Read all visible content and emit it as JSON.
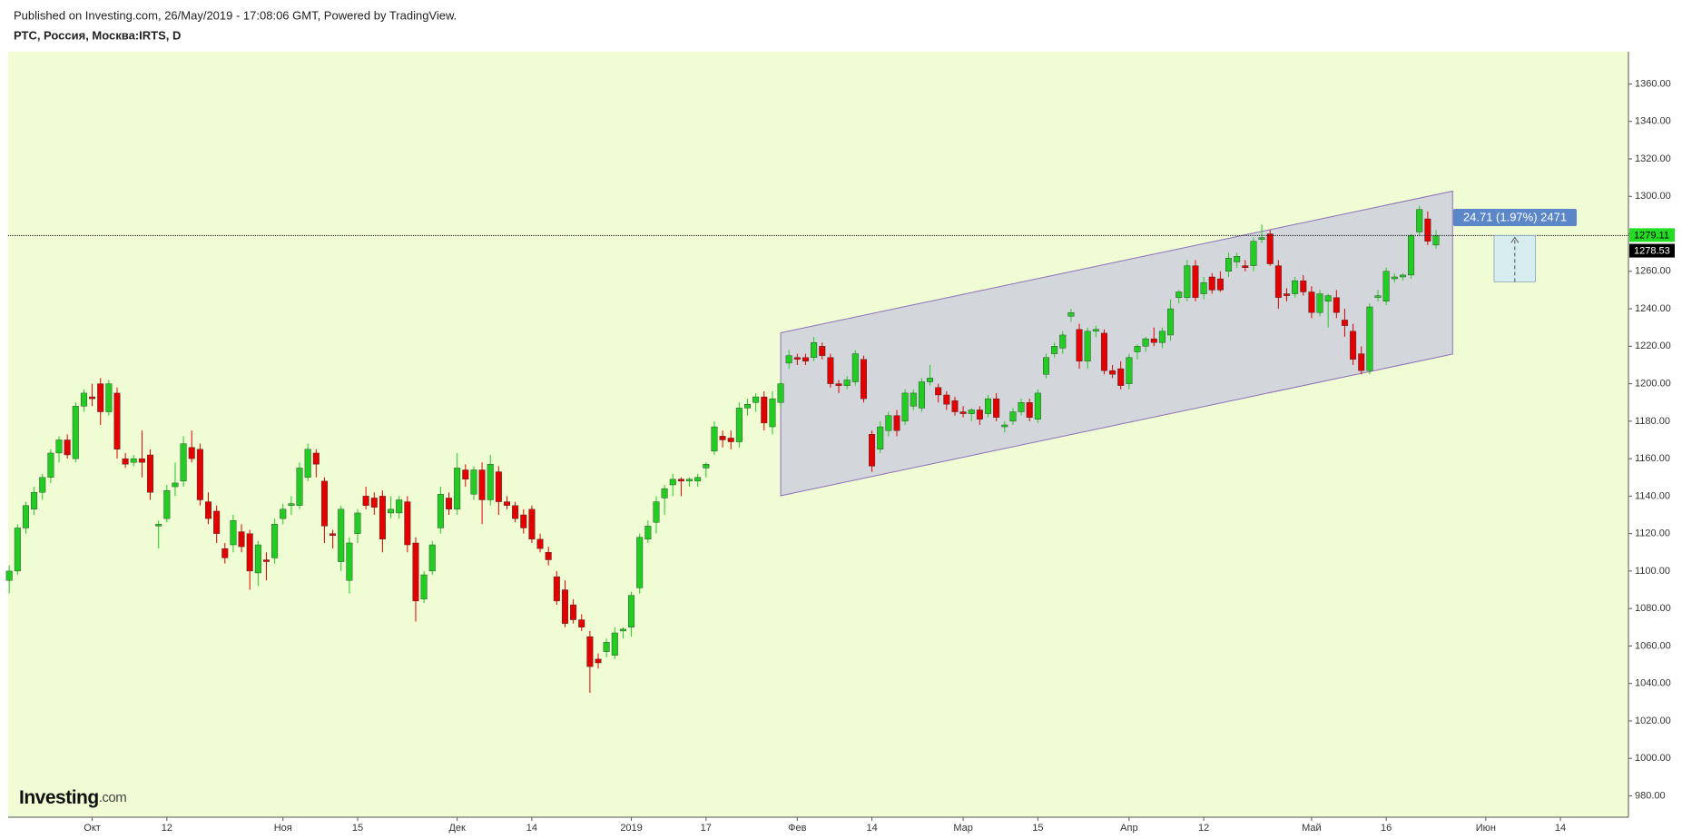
{
  "header": {
    "published": "Published on Investing.com, 26/May/2019 - 17:08:06 GMT, Powered by TradingView.",
    "symbol": "РТС, Россия, Москва:IRTS, D"
  },
  "logo": {
    "brand": "Investing",
    "suffix": ".com"
  },
  "chart_data": {
    "type": "candlestick",
    "up_color": "#22cc22",
    "down_color": "#e30000",
    "background": "#effcd4",
    "xlim": [
      -0.13,
      195.2
    ],
    "ylim": [
      968.6,
      1377.2
    ],
    "xticks": [
      {
        "value": 10,
        "label": "Окт"
      },
      {
        "value": 19,
        "label": "12"
      },
      {
        "value": 33,
        "label": "Ноя"
      },
      {
        "value": 42,
        "label": "15"
      },
      {
        "value": 54,
        "label": "Дек"
      },
      {
        "value": 63,
        "label": "14"
      },
      {
        "value": 75,
        "label": "2019"
      },
      {
        "value": 84,
        "label": "17"
      },
      {
        "value": 95,
        "label": "Фев"
      },
      {
        "value": 104,
        "label": "14"
      },
      {
        "value": 115,
        "label": "Мар"
      },
      {
        "value": 124,
        "label": "15"
      },
      {
        "value": 135,
        "label": "Апр"
      },
      {
        "value": 144,
        "label": "12"
      },
      {
        "value": 157,
        "label": "Май"
      },
      {
        "value": 166,
        "label": "16"
      },
      {
        "value": 178,
        "label": "Июн"
      },
      {
        "value": 187,
        "label": "14"
      }
    ],
    "yticks": [
      {
        "value": 980,
        "label": "980.00"
      },
      {
        "value": 1000,
        "label": "1000.00"
      },
      {
        "value": 1020,
        "label": "1020.00"
      },
      {
        "value": 1040,
        "label": "1040.00"
      },
      {
        "value": 1060,
        "label": "1060.00"
      },
      {
        "value": 1080,
        "label": "1080.00"
      },
      {
        "value": 1100,
        "label": "1100.00"
      },
      {
        "value": 1120,
        "label": "1120.00"
      },
      {
        "value": 1140,
        "label": "1140.00"
      },
      {
        "value": 1160,
        "label": "1160.00"
      },
      {
        "value": 1180,
        "label": "1180.00"
      },
      {
        "value": 1200,
        "label": "1200.00"
      },
      {
        "value": 1220,
        "label": "1220.00"
      },
      {
        "value": 1240,
        "label": "1240.00"
      },
      {
        "value": 1260,
        "label": "1260.00"
      },
      {
        "value": 1280,
        "label": "1280.00"
      },
      {
        "value": 1300,
        "label": "1300.00"
      },
      {
        "value": 1320,
        "label": "1320.00"
      },
      {
        "value": 1340,
        "label": "1340.00"
      },
      {
        "value": 1360,
        "label": "1360.00"
      }
    ],
    "ohlc": [
      [
        1095,
        1103,
        1088,
        1100
      ],
      [
        1100,
        1125,
        1098,
        1123
      ],
      [
        1123,
        1137,
        1120,
        1135
      ],
      [
        1133,
        1145,
        1130,
        1142
      ],
      [
        1142,
        1152,
        1138,
        1150
      ],
      [
        1150,
        1165,
        1147,
        1163
      ],
      [
        1163,
        1172,
        1158,
        1170
      ],
      [
        1170,
        1173,
        1160,
        1162
      ],
      [
        1160,
        1190,
        1158,
        1188
      ],
      [
        1188,
        1197,
        1185,
        1195
      ],
      [
        1193,
        1200,
        1188,
        1192
      ],
      [
        1200,
        1203,
        1178,
        1185
      ],
      [
        1185,
        1202,
        1183,
        1200
      ],
      [
        1195,
        1198,
        1160,
        1165
      ],
      [
        1160,
        1163,
        1155,
        1157
      ],
      [
        1158,
        1162,
        1156,
        1160
      ],
      [
        1160,
        1175,
        1150,
        1158
      ],
      [
        1162,
        1165,
        1138,
        1142
      ],
      [
        1124,
        1127,
        1112,
        1125
      ],
      [
        1128,
        1146,
        1126,
        1143
      ],
      [
        1145,
        1158,
        1140,
        1147
      ],
      [
        1148,
        1172,
        1145,
        1168
      ],
      [
        1166,
        1175,
        1158,
        1160
      ],
      [
        1165,
        1168,
        1135,
        1138
      ],
      [
        1137,
        1142,
        1125,
        1128
      ],
      [
        1132,
        1135,
        1115,
        1120
      ],
      [
        1112,
        1115,
        1104,
        1107
      ],
      [
        1114,
        1130,
        1110,
        1127
      ],
      [
        1121,
        1125,
        1110,
        1113
      ],
      [
        1120,
        1122,
        1090,
        1100
      ],
      [
        1099,
        1116,
        1092,
        1114
      ],
      [
        1106,
        1110,
        1095,
        1105
      ],
      [
        1107,
        1128,
        1104,
        1125
      ],
      [
        1128,
        1136,
        1125,
        1133
      ],
      [
        1135,
        1140,
        1130,
        1136
      ],
      [
        1135,
        1158,
        1133,
        1155
      ],
      [
        1150,
        1168,
        1148,
        1165
      ],
      [
        1163,
        1165,
        1150,
        1157
      ],
      [
        1148,
        1150,
        1115,
        1124
      ],
      [
        1120,
        1122,
        1112,
        1119
      ],
      [
        1105,
        1135,
        1100,
        1133
      ],
      [
        1095,
        1118,
        1088,
        1115
      ],
      [
        1120,
        1133,
        1115,
        1131
      ],
      [
        1140,
        1145,
        1133,
        1135
      ],
      [
        1139,
        1142,
        1130,
        1134
      ],
      [
        1140,
        1143,
        1110,
        1117
      ],
      [
        1131,
        1140,
        1128,
        1133
      ],
      [
        1131,
        1140,
        1128,
        1138
      ],
      [
        1137,
        1140,
        1110,
        1114
      ],
      [
        1115,
        1118,
        1073,
        1084
      ],
      [
        1085,
        1100,
        1083,
        1098
      ],
      [
        1100,
        1116,
        1098,
        1114
      ],
      [
        1123,
        1145,
        1120,
        1141
      ],
      [
        1139,
        1142,
        1130,
        1133
      ],
      [
        1133,
        1163,
        1130,
        1155
      ],
      [
        1154,
        1157,
        1145,
        1149
      ],
      [
        1141,
        1156,
        1138,
        1154
      ],
      [
        1154,
        1158,
        1125,
        1138
      ],
      [
        1138,
        1162,
        1135,
        1157
      ],
      [
        1153,
        1156,
        1130,
        1137
      ],
      [
        1137,
        1140,
        1133,
        1135
      ],
      [
        1135,
        1137,
        1126,
        1128
      ],
      [
        1130,
        1133,
        1120,
        1123
      ],
      [
        1133,
        1135,
        1115,
        1117
      ],
      [
        1117,
        1120,
        1110,
        1112
      ],
      [
        1110,
        1113,
        1103,
        1106
      ],
      [
        1097,
        1100,
        1082,
        1084
      ],
      [
        1090,
        1095,
        1070,
        1072
      ],
      [
        1082,
        1085,
        1072,
        1074
      ],
      [
        1074,
        1077,
        1068,
        1070
      ],
      [
        1065,
        1068,
        1035,
        1049
      ],
      [
        1053,
        1056,
        1048,
        1051
      ],
      [
        1057,
        1064,
        1054,
        1062
      ],
      [
        1055,
        1070,
        1053,
        1067
      ],
      [
        1068,
        1070,
        1064,
        1069
      ],
      [
        1070,
        1089,
        1065,
        1087
      ],
      [
        1091,
        1120,
        1088,
        1118
      ],
      [
        1117,
        1127,
        1115,
        1124
      ],
      [
        1126,
        1140,
        1120,
        1137
      ],
      [
        1139,
        1146,
        1130,
        1144
      ],
      [
        1146,
        1152,
        1140,
        1149
      ],
      [
        1149,
        1150,
        1140,
        1148
      ],
      [
        1148,
        1150,
        1145,
        1149
      ],
      [
        1148,
        1152,
        1145,
        1150
      ],
      [
        1155,
        1158,
        1150,
        1157
      ],
      [
        1164,
        1180,
        1162,
        1177
      ],
      [
        1172,
        1175,
        1166,
        1170
      ],
      [
        1171,
        1175,
        1165,
        1169
      ],
      [
        1169,
        1190,
        1166,
        1187
      ],
      [
        1187,
        1192,
        1183,
        1189
      ],
      [
        1190,
        1195,
        1185,
        1193
      ],
      [
        1193,
        1196,
        1175,
        1179
      ],
      [
        1177,
        1196,
        1173,
        1192
      ],
      [
        1190,
        1202,
        1187,
        1200
      ],
      [
        1211,
        1218,
        1208,
        1215
      ],
      [
        1214,
        1216,
        1210,
        1213
      ],
      [
        1214,
        1216,
        1210,
        1212
      ],
      [
        1214,
        1225,
        1212,
        1222
      ],
      [
        1220,
        1222,
        1213,
        1215
      ],
      [
        1214,
        1216,
        1198,
        1200
      ],
      [
        1200,
        1202,
        1195,
        1199
      ],
      [
        1199,
        1204,
        1197,
        1202
      ],
      [
        1201,
        1218,
        1199,
        1216
      ],
      [
        1213,
        1215,
        1190,
        1192
      ],
      [
        1173,
        1175,
        1153,
        1156
      ],
      [
        1165,
        1180,
        1163,
        1177
      ],
      [
        1175,
        1185,
        1172,
        1183
      ],
      [
        1183,
        1186,
        1172,
        1175
      ],
      [
        1180,
        1197,
        1178,
        1195
      ],
      [
        1188,
        1197,
        1186,
        1195
      ],
      [
        1187,
        1203,
        1185,
        1201
      ],
      [
        1201,
        1210,
        1199,
        1203
      ],
      [
        1198,
        1200,
        1190,
        1194
      ],
      [
        1194,
        1196,
        1186,
        1189
      ],
      [
        1191,
        1193,
        1183,
        1185
      ],
      [
        1185,
        1188,
        1182,
        1184
      ],
      [
        1184,
        1187,
        1180,
        1186
      ],
      [
        1186,
        1188,
        1178,
        1181
      ],
      [
        1184,
        1194,
        1182,
        1192
      ],
      [
        1192,
        1195,
        1180,
        1182
      ],
      [
        1177,
        1180,
        1174,
        1178
      ],
      [
        1180,
        1187,
        1178,
        1185
      ],
      [
        1185,
        1192,
        1183,
        1190
      ],
      [
        1190,
        1192,
        1180,
        1182
      ],
      [
        1181,
        1197,
        1179,
        1195
      ],
      [
        1205,
        1216,
        1203,
        1214
      ],
      [
        1216,
        1222,
        1214,
        1220
      ],
      [
        1219,
        1228,
        1216,
        1226
      ],
      [
        1236,
        1240,
        1233,
        1238
      ],
      [
        1229,
        1232,
        1208,
        1212
      ],
      [
        1212,
        1230,
        1208,
        1228
      ],
      [
        1228,
        1231,
        1225,
        1229
      ],
      [
        1227,
        1229,
        1205,
        1207
      ],
      [
        1207,
        1210,
        1203,
        1205
      ],
      [
        1208,
        1212,
        1197,
        1199
      ],
      [
        1200,
        1216,
        1197,
        1214
      ],
      [
        1217,
        1221,
        1213,
        1220
      ],
      [
        1220,
        1225,
        1217,
        1224
      ],
      [
        1224,
        1230,
        1220,
        1222
      ],
      [
        1222,
        1230,
        1219,
        1228
      ],
      [
        1226,
        1245,
        1223,
        1240
      ],
      [
        1246,
        1250,
        1243,
        1249
      ],
      [
        1246,
        1266,
        1244,
        1263
      ],
      [
        1263,
        1266,
        1244,
        1246
      ],
      [
        1248,
        1257,
        1245,
        1254
      ],
      [
        1257,
        1259,
        1248,
        1250
      ],
      [
        1256,
        1260,
        1249,
        1250
      ],
      [
        1260,
        1270,
        1257,
        1267
      ],
      [
        1265,
        1270,
        1262,
        1268
      ],
      [
        1263,
        1266,
        1260,
        1262
      ],
      [
        1263,
        1278,
        1260,
        1276
      ],
      [
        1277,
        1285,
        1275,
        1278
      ],
      [
        1280,
        1282,
        1263,
        1264
      ],
      [
        1263,
        1266,
        1240,
        1246
      ],
      [
        1248,
        1251,
        1244,
        1247
      ],
      [
        1248,
        1257,
        1246,
        1255
      ],
      [
        1255,
        1258,
        1247,
        1249
      ],
      [
        1249,
        1252,
        1235,
        1238
      ],
      [
        1238,
        1250,
        1236,
        1248
      ],
      [
        1244,
        1248,
        1230,
        1247
      ],
      [
        1246,
        1250,
        1235,
        1238
      ],
      [
        1234,
        1240,
        1225,
        1231
      ],
      [
        1228,
        1232,
        1210,
        1213
      ],
      [
        1216,
        1220,
        1205,
        1207
      ],
      [
        1207,
        1243,
        1205,
        1241
      ],
      [
        1246,
        1250,
        1244,
        1247
      ],
      [
        1244,
        1262,
        1242,
        1260
      ],
      [
        1256,
        1259,
        1254,
        1257
      ],
      [
        1257,
        1259,
        1255,
        1258
      ],
      [
        1258,
        1280,
        1256,
        1279
      ],
      [
        1281,
        1295,
        1279,
        1293
      ],
      [
        1288,
        1292,
        1274,
        1276
      ],
      [
        1274,
        1282,
        1272,
        1279
      ]
    ],
    "channel": {
      "x": [
        93,
        174
      ],
      "upper": [
        1227.2,
        1302.8
      ],
      "lower": [
        1140.2,
        1215.8
      ],
      "fill": "#cfd2da",
      "stroke": "#8e6fb8"
    },
    "price_line": {
      "value": 1279.11,
      "label": "1279.11",
      "color": "#22dd22"
    },
    "last_close": {
      "value": 1278.53,
      "label": "1278.53"
    },
    "measure": {
      "x": [
        179,
        184
      ],
      "from": 1254.4,
      "to": 1279.11,
      "label": "24.71 (1.97%) 2471"
    }
  }
}
